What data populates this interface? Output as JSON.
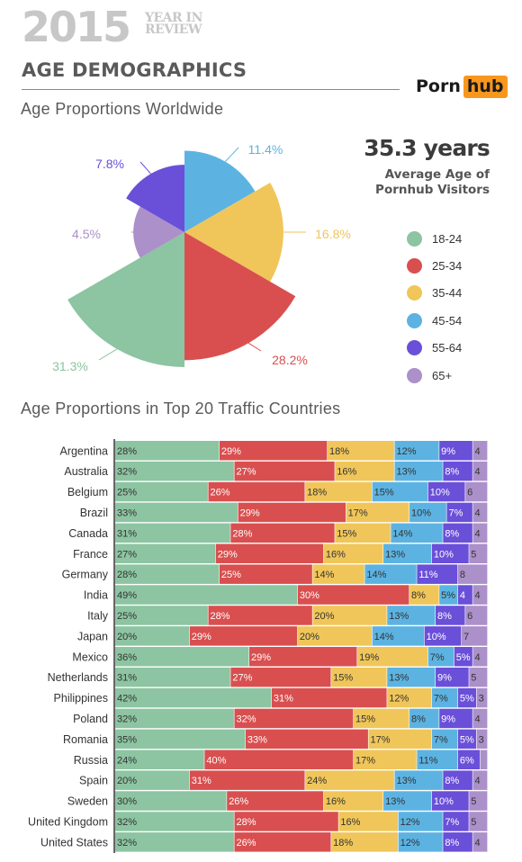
{
  "header": {
    "year": "2015",
    "year_in_review": "YEAR IN",
    "review": "REVIEW",
    "section_title": "AGE DEMOGRAPHICS",
    "logo_part1": "Porn",
    "logo_part2": "hub"
  },
  "colors": {
    "18-24": "#8dc4a2",
    "25-34": "#d94f4f",
    "35-44": "#f0c65a",
    "45-54": "#5cb3e2",
    "55-64": "#6a4fd9",
    "65+": "#ab90c9"
  },
  "average_age": {
    "value": "35.3 years",
    "label_line1": "Average Age of",
    "label_line2": "Pornhub Visitors"
  },
  "chart_data": [
    {
      "type": "pie",
      "title": "Age Proportions Worldwide",
      "categories": [
        "18-24",
        "25-34",
        "35-44",
        "45-54",
        "55-64",
        "65+"
      ],
      "values": [
        31.3,
        28.2,
        16.8,
        11.4,
        7.8,
        4.5
      ],
      "labels": [
        "31.3%",
        "28.2%",
        "16.8%",
        "11.4%",
        "7.8%",
        "4.5%"
      ],
      "legend": [
        "18-24",
        "25-34",
        "35-44",
        "45-54",
        "55-64",
        "65+"
      ]
    },
    {
      "type": "bar",
      "stacked": true,
      "orientation": "horizontal",
      "title": "Age Proportions in Top 20 Traffic Countries",
      "categories": [
        "Argentina",
        "Australia",
        "Belgium",
        "Brazil",
        "Canada",
        "France",
        "Germany",
        "India",
        "Italy",
        "Japan",
        "Mexico",
        "Netherlands",
        "Philippines",
        "Poland",
        "Romania",
        "Russia",
        "Spain",
        "Sweden",
        "United Kingdom",
        "United States"
      ],
      "series": [
        {
          "name": "18-24",
          "values": [
            28,
            32,
            25,
            33,
            31,
            27,
            28,
            49,
            25,
            20,
            36,
            31,
            42,
            32,
            35,
            24,
            20,
            30,
            32,
            32
          ]
        },
        {
          "name": "25-34",
          "values": [
            29,
            27,
            26,
            29,
            28,
            29,
            25,
            30,
            28,
            29,
            29,
            27,
            31,
            32,
            33,
            40,
            31,
            26,
            28,
            26
          ]
        },
        {
          "name": "35-44",
          "values": [
            18,
            16,
            18,
            17,
            15,
            16,
            14,
            8,
            20,
            20,
            19,
            15,
            12,
            15,
            17,
            17,
            24,
            16,
            16,
            18
          ]
        },
        {
          "name": "45-54",
          "values": [
            12,
            13,
            15,
            10,
            14,
            13,
            14,
            5,
            13,
            14,
            7,
            13,
            7,
            8,
            7,
            11,
            13,
            13,
            12,
            12
          ]
        },
        {
          "name": "55-64",
          "values": [
            9,
            8,
            10,
            7,
            8,
            10,
            11,
            4,
            8,
            10,
            5,
            9,
            5,
            9,
            5,
            6,
            8,
            10,
            7,
            8
          ]
        },
        {
          "name": "65+",
          "values": [
            4,
            4,
            6,
            4,
            4,
            5,
            8,
            4,
            6,
            7,
            4,
            5,
            3,
            4,
            3,
            2,
            4,
            5,
            5,
            4
          ]
        }
      ],
      "labels": [
        [
          "28%",
          "29%",
          "18%",
          "12%",
          "9%",
          "4"
        ],
        [
          "32%",
          "27%",
          "16%",
          "13%",
          "8%",
          "4"
        ],
        [
          "25%",
          "26%",
          "18%",
          "15%",
          "10%",
          "6"
        ],
        [
          "33%",
          "29%",
          "17%",
          "10%",
          "7%",
          "4"
        ],
        [
          "31%",
          "28%",
          "15%",
          "14%",
          "8%",
          "4"
        ],
        [
          "27%",
          "29%",
          "16%",
          "13%",
          "10%",
          "5"
        ],
        [
          "28%",
          "25%",
          "14%",
          "14%",
          "11%",
          "8"
        ],
        [
          "49%",
          "30%",
          "8%",
          "5%",
          "4",
          "4"
        ],
        [
          "25%",
          "28%",
          "20%",
          "13%",
          "8%",
          "6"
        ],
        [
          "20%",
          "29%",
          "20%",
          "14%",
          "10%",
          "7"
        ],
        [
          "36%",
          "29%",
          "19%",
          "7%",
          "5%",
          "4"
        ],
        [
          "31%",
          "27%",
          "15%",
          "13%",
          "9%",
          "5"
        ],
        [
          "42%",
          "31%",
          "12%",
          "7%",
          "5%",
          "3"
        ],
        [
          "32%",
          "32%",
          "15%",
          "8%",
          "9%",
          "4"
        ],
        [
          "35%",
          "33%",
          "17%",
          "7%",
          "5%",
          "3"
        ],
        [
          "24%",
          "40%",
          "17%",
          "11%",
          "6%",
          ""
        ],
        [
          "20%",
          "31%",
          "24%",
          "13%",
          "8%",
          "4"
        ],
        [
          "30%",
          "26%",
          "16%",
          "13%",
          "10%",
          "5"
        ],
        [
          "32%",
          "28%",
          "16%",
          "12%",
          "7%",
          "5"
        ],
        [
          "32%",
          "26%",
          "18%",
          "12%",
          "8%",
          "4"
        ]
      ]
    }
  ]
}
